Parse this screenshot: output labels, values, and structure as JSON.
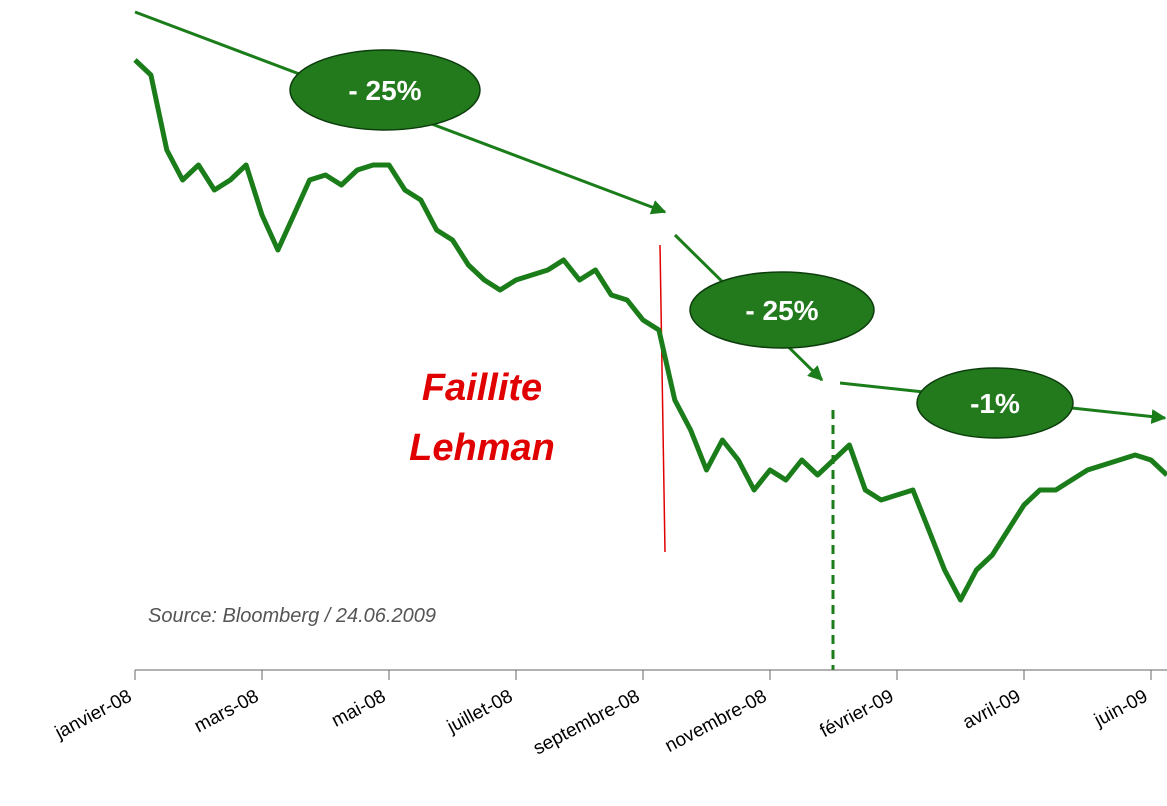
{
  "chart_data": {
    "type": "line",
    "categories": [
      "janvier-08",
      null,
      null,
      null,
      null,
      null,
      null,
      null,
      "mars-08",
      null,
      null,
      null,
      null,
      null,
      null,
      null,
      "mai-08",
      null,
      null,
      null,
      null,
      null,
      null,
      null,
      "juillet-08",
      null,
      null,
      null,
      null,
      null,
      null,
      null,
      "septembre-08",
      null,
      null,
      null,
      null,
      null,
      null,
      null,
      "novembre-08",
      null,
      null,
      null,
      null,
      null,
      null,
      null,
      "février-09",
      null,
      null,
      null,
      null,
      null,
      null,
      null,
      "avril-09",
      null,
      null,
      null,
      null,
      null,
      null,
      null,
      "juin-09",
      null
    ],
    "series": [
      {
        "color": "#1a7d1a",
        "values": [
          640,
          625,
          550,
          520,
          535,
          510,
          520,
          535,
          485,
          450,
          485,
          520,
          525,
          515,
          530,
          535,
          535,
          510,
          500,
          470,
          460,
          435,
          420,
          410,
          420,
          425,
          430,
          440,
          420,
          430,
          405,
          400,
          380,
          370,
          300,
          270,
          230,
          260,
          240,
          210,
          230,
          220,
          240,
          225,
          240,
          255,
          210,
          200,
          205,
          210,
          170,
          130,
          100,
          130,
          145,
          170,
          195,
          210,
          210,
          220,
          230,
          235,
          240,
          245,
          240,
          225
        ]
      }
    ],
    "ylim": [
      0,
      700
    ],
    "annotations": [
      "- 25%",
      "- 25%",
      "-1%"
    ],
    "event_label": [
      "Faillite",
      "Lehman"
    ],
    "source": "Source: Bloomberg / 24.06.2009"
  }
}
